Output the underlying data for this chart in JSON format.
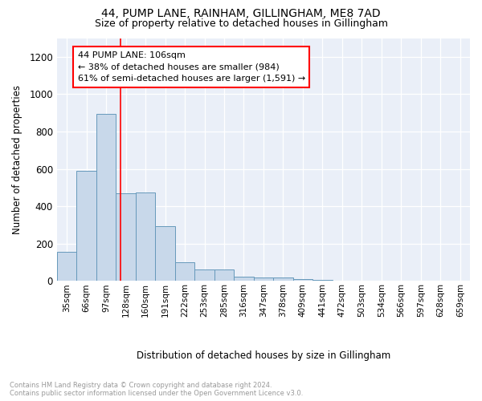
{
  "title": "44, PUMP LANE, RAINHAM, GILLINGHAM, ME8 7AD",
  "subtitle": "Size of property relative to detached houses in Gillingham",
  "xlabel": "Distribution of detached houses by size in Gillingham",
  "ylabel": "Number of detached properties",
  "bar_labels": [
    "35sqm",
    "66sqm",
    "97sqm",
    "128sqm",
    "160sqm",
    "191sqm",
    "222sqm",
    "253sqm",
    "285sqm",
    "316sqm",
    "347sqm",
    "378sqm",
    "409sqm",
    "441sqm",
    "472sqm",
    "503sqm",
    "534sqm",
    "566sqm",
    "597sqm",
    "628sqm",
    "659sqm"
  ],
  "bar_values": [
    155,
    590,
    895,
    470,
    472,
    295,
    100,
    60,
    60,
    25,
    20,
    18,
    10,
    8,
    0,
    0,
    0,
    0,
    0,
    0,
    0
  ],
  "bar_color": "#c8d8ea",
  "bar_edge_color": "#6699bb",
  "red_line_x": 2.72,
  "annotation_text": "44 PUMP LANE: 106sqm\n← 38% of detached houses are smaller (984)\n61% of semi-detached houses are larger (1,591) →",
  "annotation_box_color": "white",
  "annotation_box_edge_color": "red",
  "ylim": [
    0,
    1300
  ],
  "yticks": [
    0,
    200,
    400,
    600,
    800,
    1000,
    1200
  ],
  "footnote": "Contains HM Land Registry data © Crown copyright and database right 2024.\nContains public sector information licensed under the Open Government Licence v3.0.",
  "background_color": "#eaeff8",
  "plot_background": "#eaeff8"
}
